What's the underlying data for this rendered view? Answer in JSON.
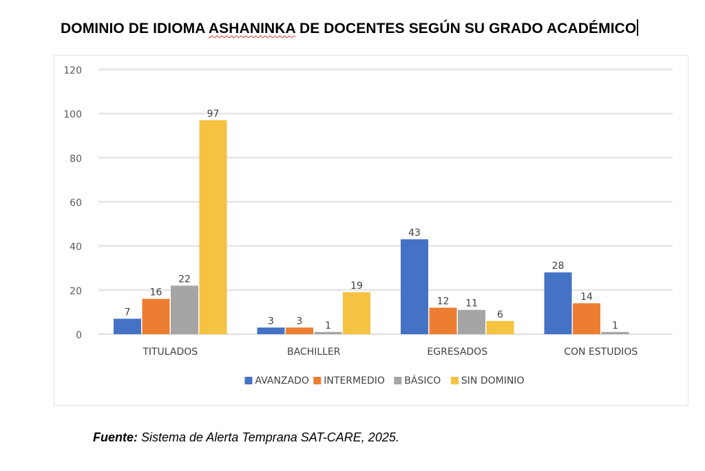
{
  "title": {
    "part1": "DOMINIO DE IDIOMA ",
    "misspelled": "ASHANINKA",
    "part2": " DE DOCENTES SEGÚN SU GRADO ACADÉMICO"
  },
  "source": {
    "label": "Fuente:",
    "text": " Sistema de Alerta Temprana SAT-CARE, 2025."
  },
  "chart_data": {
    "type": "bar",
    "categories": [
      "TITULADOS",
      "BACHILLER",
      "EGRESADOS",
      "CON ESTUDIOS"
    ],
    "series": [
      {
        "name": "AVANZADO",
        "color": "#4472c4",
        "values": [
          7,
          3,
          43,
          28
        ]
      },
      {
        "name": "INTERMEDIO",
        "color": "#ed7d31",
        "values": [
          16,
          3,
          12,
          14
        ]
      },
      {
        "name": "BÁSICO",
        "color": "#a5a5a5",
        "values": [
          22,
          1,
          11,
          1
        ]
      },
      {
        "name": "SIN DOMINIO",
        "color": "#f5c242",
        "values": [
          97,
          19,
          6,
          null
        ]
      }
    ],
    "ylim": [
      0,
      120
    ],
    "yticks": [
      0,
      20,
      40,
      60,
      80,
      100,
      120
    ],
    "grid": true,
    "legend": "bottom",
    "data_labels": true
  }
}
